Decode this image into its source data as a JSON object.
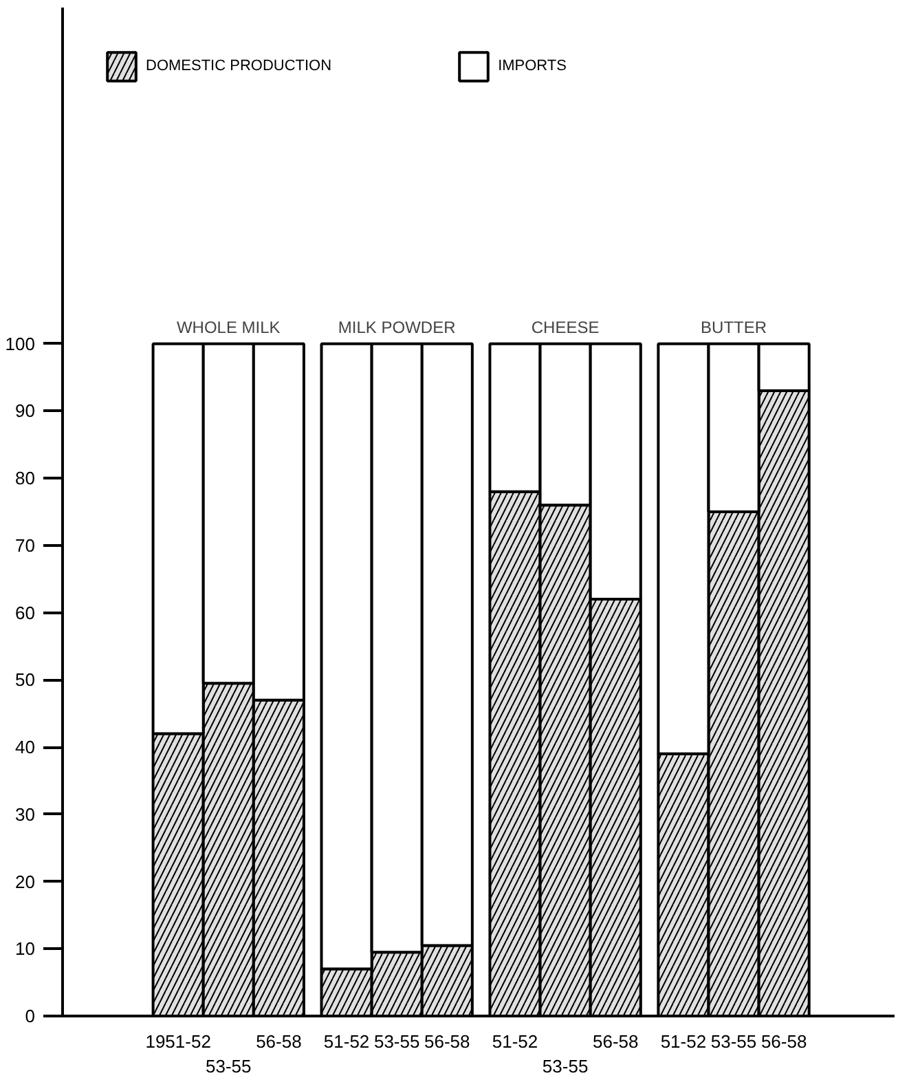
{
  "chart_data": {
    "type": "bar",
    "stacked": true,
    "categories": [
      "1951-52",
      "53-55",
      "56-58",
      "51-52",
      "53-55",
      "56-58",
      "51-52",
      "53-55",
      "56-58",
      "51-52",
      "53-55",
      "56-58"
    ],
    "series": [
      {
        "name": "DOMESTIC PRODUCTION",
        "color": "#e0e0e0",
        "values": [
          42,
          49.5,
          47,
          7,
          9.5,
          10.5,
          78,
          76,
          62,
          39,
          75,
          93
        ]
      },
      {
        "name": "IMPORTS",
        "color": "#ffffff",
        "values": [
          58,
          50.5,
          53,
          93,
          90.5,
          89.5,
          22,
          24,
          38,
          61,
          25,
          7
        ]
      }
    ],
    "annotations": [
      "WHOLE MILK",
      "MILK POWDER",
      "CHEESE",
      "BUTTER"
    ],
    "ylim": [
      0,
      150
    ],
    "yticks": [
      0,
      10,
      20,
      30,
      40,
      50,
      60,
      70,
      80,
      90,
      100
    ],
    "grid": false,
    "legend": "top left"
  }
}
